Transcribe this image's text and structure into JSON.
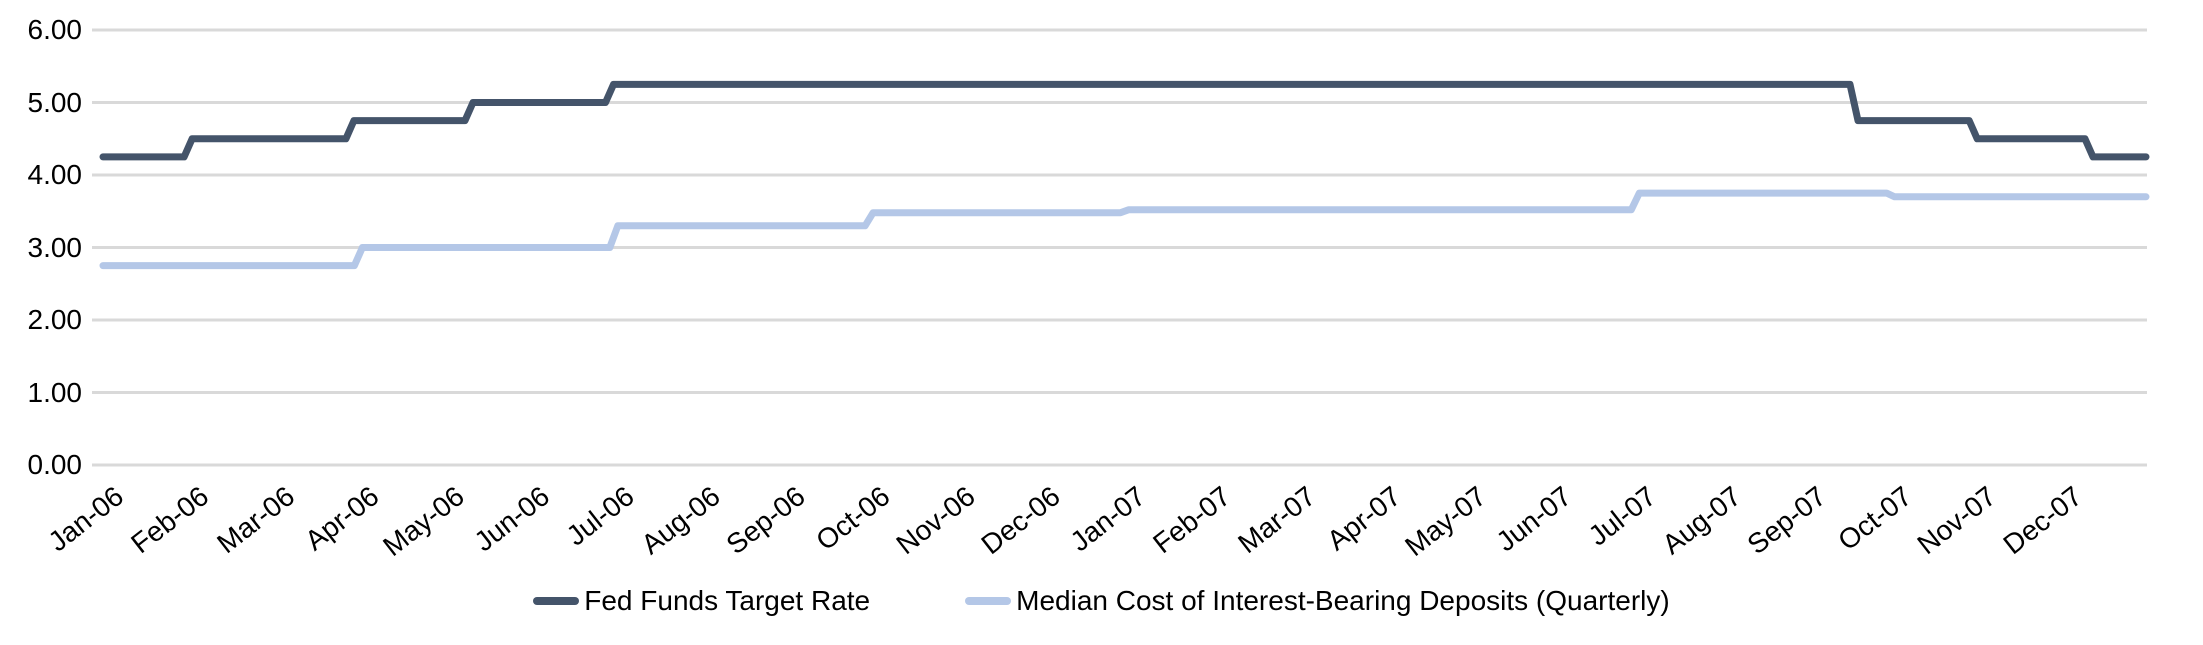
{
  "chart_data": {
    "type": "line",
    "subtype": "step",
    "title": "",
    "grid": "horizontal",
    "grid_color": "#D9D9D9",
    "background_color": "#FFFFFF",
    "legend_position": "bottom",
    "y_axis": {
      "min": 0,
      "max": 6,
      "tick_step": 1,
      "tick_labels": [
        "0.00",
        "1.00",
        "2.00",
        "3.00",
        "4.00",
        "5.00",
        "6.00"
      ]
    },
    "x_axis": {
      "labels": [
        "Jan-06",
        "Feb-06",
        "Mar-06",
        "Apr-06",
        "May-06",
        "Jun-06",
        "Jul-06",
        "Aug-06",
        "Sep-06",
        "Oct-06",
        "Nov-06",
        "Dec-06",
        "Jan-07",
        "Feb-07",
        "Mar-07",
        "Apr-07",
        "May-07",
        "Jun-07",
        "Jul-07",
        "Aug-07",
        "Sep-07",
        "Oct-07",
        "Nov-07",
        "Dec-07"
      ],
      "months_total": 24
    },
    "series": [
      {
        "name": "Fed Funds Target Rate",
        "color": "#44546A",
        "steps": [
          {
            "t": 0,
            "v": 4.25
          },
          {
            "t": 1.0,
            "v": 4.5
          },
          {
            "t": 2.9,
            "v": 4.75
          },
          {
            "t": 4.3,
            "v": 5.0
          },
          {
            "t": 5.95,
            "v": 5.25
          },
          {
            "t": 20.57,
            "v": 4.75
          },
          {
            "t": 21.97,
            "v": 4.5
          },
          {
            "t": 23.33,
            "v": 4.25
          }
        ],
        "t_end": 24
      },
      {
        "name": "Median Cost of Interest-Bearing Deposits (Quarterly)",
        "color": "#B4C7E7",
        "steps": [
          {
            "t": 0,
            "v": 2.75
          },
          {
            "t": 3,
            "v": 3.0
          },
          {
            "t": 6,
            "v": 3.3
          },
          {
            "t": 9,
            "v": 3.48
          },
          {
            "t": 12,
            "v": 3.52
          },
          {
            "t": 18,
            "v": 3.75
          },
          {
            "t": 21,
            "v": 3.7
          }
        ],
        "t_end": 24
      }
    ]
  }
}
